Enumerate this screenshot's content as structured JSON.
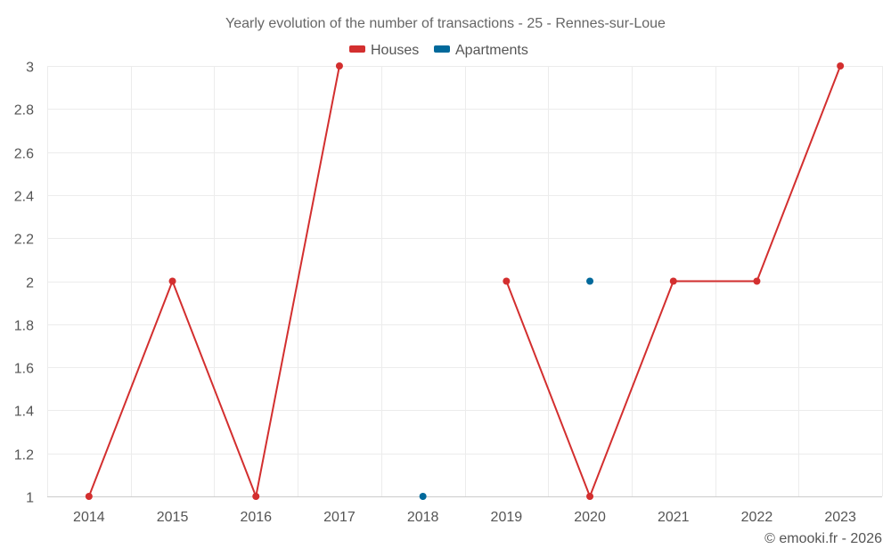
{
  "chart_data": {
    "type": "line",
    "title": "Yearly evolution of the number of transactions - 25 - Rennes-sur-Loue",
    "categories": [
      "2014",
      "2015",
      "2016",
      "2017",
      "2018",
      "2019",
      "2020",
      "2021",
      "2022",
      "2023"
    ],
    "y_ticks": [
      "1",
      "1.2",
      "1.4",
      "1.6",
      "1.8",
      "2",
      "2.2",
      "2.4",
      "2.6",
      "2.8",
      "3"
    ],
    "ylim": [
      1,
      3
    ],
    "grid": true,
    "legend_position": "top-center",
    "series": [
      {
        "name": "Houses",
        "color": "#d32f2f",
        "values": [
          1,
          2,
          1,
          3,
          null,
          2,
          1,
          2,
          2,
          3
        ]
      },
      {
        "name": "Apartments",
        "color": "#01699b",
        "values": [
          null,
          null,
          null,
          null,
          1,
          null,
          2,
          null,
          null,
          null
        ]
      }
    ],
    "credit": "© emooki.fr - 2026"
  }
}
